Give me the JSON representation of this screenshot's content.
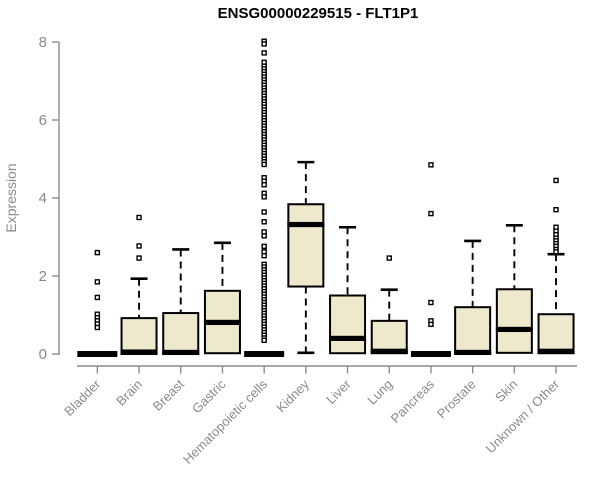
{
  "window": {
    "background": "#ffffff"
  },
  "chart_data": {
    "type": "boxplot",
    "title": "ENSG00000229515 - FLT1P1",
    "xlabel": "",
    "ylabel": "Expression",
    "ylim": [
      0,
      8
    ],
    "yticks": [
      0,
      2,
      4,
      6,
      8
    ],
    "grid": false,
    "legend": "none",
    "colors": {
      "box_fill": "#EEE8CD",
      "box_stroke": "#000000",
      "median": "#000000",
      "whisker": "#000000",
      "axis": "#8b8b8b",
      "tick_text": "#8b8b8b",
      "title_text": "#000000",
      "outlier_stroke": "#000000",
      "outlier_fill": "#ffffff"
    },
    "categories": [
      "Bladder",
      "Brain",
      "Breast",
      "Gastric",
      "Hematopoietic cells",
      "Kidney",
      "Liver",
      "Lung",
      "Pancreas",
      "Prostate",
      "Skin",
      "Unknown / Other"
    ],
    "boxes": [
      {
        "category": "Bladder",
        "flat": true,
        "q1": 0,
        "median": 0,
        "q3": 0,
        "whisker_low": 0,
        "whisker_high": 0,
        "outliers": [
          2.6,
          1.85,
          1.45,
          1.02,
          0.93,
          0.85,
          0.77,
          0.68
        ]
      },
      {
        "category": "Brain",
        "flat": false,
        "q1": 0,
        "median": 0.05,
        "q3": 0.92,
        "whisker_low": 0,
        "whisker_high": 1.93,
        "outliers": [
          3.5,
          2.77,
          2.46
        ]
      },
      {
        "category": "Breast",
        "flat": false,
        "q1": 0,
        "median": 0.04,
        "q3": 1.05,
        "whisker_low": 0,
        "whisker_high": 2.68,
        "outliers": []
      },
      {
        "category": "Gastric",
        "flat": false,
        "q1": 0.02,
        "median": 0.81,
        "q3": 1.62,
        "whisker_low": 0.02,
        "whisker_high": 2.85,
        "outliers": []
      },
      {
        "category": "Hematopoietic cells",
        "flat": true,
        "q1": 0,
        "median": 0,
        "q3": 0,
        "whisker_low": 0,
        "whisker_high": 0,
        "outliers": [
          8.02,
          7.95,
          7.72,
          7.48,
          7.38,
          7.31,
          7.24,
          7.17,
          7.1,
          7.03,
          6.96,
          6.89,
          6.82,
          6.75,
          6.68,
          6.61,
          6.54,
          6.47,
          6.4,
          6.33,
          6.26,
          6.19,
          6.12,
          6.05,
          5.98,
          5.91,
          5.84,
          5.77,
          5.7,
          5.63,
          5.56,
          5.49,
          5.42,
          5.35,
          5.28,
          5.21,
          5.14,
          5.07,
          5.0,
          4.93,
          4.86,
          4.52,
          4.43,
          4.34,
          4.12,
          4.03,
          3.64,
          3.39,
          3.13,
          3.03,
          2.76,
          2.62,
          2.52,
          2.3,
          2.23,
          2.16,
          2.09,
          2.02,
          1.95,
          1.88,
          1.81,
          1.74,
          1.67,
          1.6,
          1.53,
          1.46,
          1.39,
          1.32,
          1.25,
          1.18,
          1.11,
          1.04,
          0.97,
          0.9,
          0.83,
          0.76,
          0.69,
          0.62,
          0.55,
          0.48,
          0.41,
          0.35
        ]
      },
      {
        "category": "Kidney",
        "flat": false,
        "q1": 1.73,
        "median": 3.32,
        "q3": 3.84,
        "whisker_low": 0.03,
        "whisker_high": 4.92,
        "outliers": []
      },
      {
        "category": "Liver",
        "flat": false,
        "q1": 0.02,
        "median": 0.4,
        "q3": 1.5,
        "whisker_low": 0.02,
        "whisker_high": 3.25,
        "outliers": []
      },
      {
        "category": "Lung",
        "flat": false,
        "q1": 0.02,
        "median": 0.07,
        "q3": 0.85,
        "whisker_low": 0.02,
        "whisker_high": 1.65,
        "outliers": [
          2.46
        ]
      },
      {
        "category": "Pancreas",
        "flat": true,
        "q1": 0,
        "median": 0,
        "q3": 0,
        "whisker_low": 0,
        "whisker_high": 0,
        "outliers": [
          4.85,
          3.6,
          1.32,
          0.85,
          0.76
        ]
      },
      {
        "category": "Prostate",
        "flat": false,
        "q1": 0,
        "median": 0.04,
        "q3": 1.2,
        "whisker_low": 0,
        "whisker_high": 2.9,
        "outliers": []
      },
      {
        "category": "Skin",
        "flat": false,
        "q1": 0.03,
        "median": 0.63,
        "q3": 1.66,
        "whisker_low": 0.03,
        "whisker_high": 3.3,
        "outliers": []
      },
      {
        "category": "Unknown / Other",
        "flat": false,
        "q1": 0.02,
        "median": 0.07,
        "q3": 1.02,
        "whisker_low": 0.02,
        "whisker_high": 2.56,
        "outliers": [
          4.45,
          3.7,
          3.25,
          3.15,
          3.06,
          2.97,
          2.9,
          2.83,
          2.76,
          2.68,
          2.62
        ]
      }
    ]
  }
}
